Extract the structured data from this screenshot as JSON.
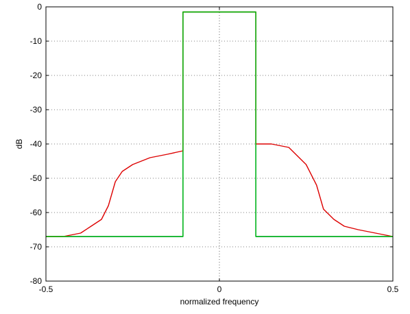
{
  "chart_data": {
    "type": "line",
    "title": "",
    "xlabel": "normalized frequency",
    "ylabel": "dB",
    "xlim": [
      -0.5,
      0.5
    ],
    "ylim": [
      -80,
      0
    ],
    "grid": true,
    "x_ticks": [
      -0.5,
      0,
      0.5
    ],
    "x_tick_labels": [
      "-0.5",
      "0",
      "0.5"
    ],
    "y_ticks": [
      0,
      -10,
      -20,
      -30,
      -40,
      -50,
      -60,
      -70,
      -80
    ],
    "y_tick_labels": [
      "0",
      "-10",
      "-20",
      "-30",
      "-40",
      "-50",
      "-60",
      "-70",
      "-80"
    ],
    "series": [
      {
        "color": "#0000cc",
        "x": [
          -0.5,
          -0.45,
          -0.4,
          -0.35,
          -0.3,
          -0.25,
          -0.2,
          -0.15,
          -0.105,
          -0.105,
          0.105,
          0.105,
          0.15,
          0.2,
          0.25,
          0.3,
          0.35,
          0.4,
          0.45,
          0.5
        ],
        "y": [
          -67,
          -67,
          -67,
          -67,
          -67,
          -67,
          -67,
          -67,
          -67,
          -1.5,
          -1.5,
          -67,
          -67,
          -67,
          -67,
          -67,
          -67,
          -67,
          -67,
          -67
        ]
      },
      {
        "color": "#dd0000",
        "x": [
          -0.5,
          -0.45,
          -0.4,
          -0.37,
          -0.34,
          -0.32,
          -0.3,
          -0.28,
          -0.25,
          -0.2,
          -0.15,
          -0.105,
          -0.105,
          0.105,
          0.105,
          0.15,
          0.2,
          0.25,
          0.28,
          0.3,
          0.33,
          0.36,
          0.4,
          0.45,
          0.5
        ],
        "y": [
          -67,
          -67,
          -66,
          -64,
          -62,
          -58,
          -51,
          -48,
          -46,
          -44,
          -43,
          -42,
          -1.5,
          -1.5,
          -40,
          -40,
          -41,
          -46,
          -52,
          -59,
          -62,
          -64,
          -65,
          -66,
          -67
        ]
      },
      {
        "color": "#00cc00",
        "x": [
          -0.5,
          -0.45,
          -0.4,
          -0.35,
          -0.3,
          -0.25,
          -0.2,
          -0.15,
          -0.105,
          -0.105,
          0.0,
          0.105,
          0.105,
          0.15,
          0.2,
          0.25,
          0.3,
          0.35,
          0.4,
          0.45,
          0.5
        ],
        "y": [
          -67,
          -67,
          -67,
          -67,
          -67,
          -67,
          -67,
          -67,
          -67,
          -1.5,
          -1.5,
          -1.5,
          -67,
          -67,
          -67,
          -67,
          -67,
          -67,
          -67,
          -67,
          -67
        ]
      }
    ]
  }
}
